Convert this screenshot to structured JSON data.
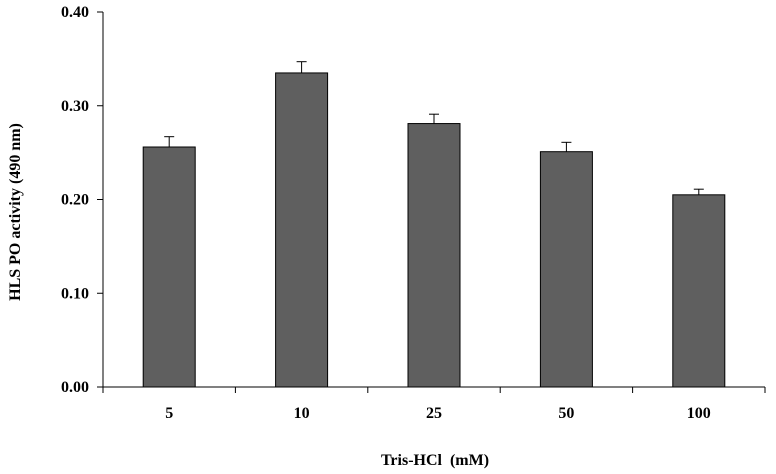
{
  "chart_data": {
    "type": "bar",
    "title": "",
    "xlabel": "Tris-HCl  (mM)",
    "ylabel": "HLS PO activity (490 nm)",
    "categories": [
      "5",
      "10",
      "25",
      "50",
      "100"
    ],
    "values": [
      0.256,
      0.335,
      0.281,
      0.251,
      0.205
    ],
    "errors": [
      0.011,
      0.012,
      0.01,
      0.01,
      0.006
    ],
    "ylim": [
      0,
      0.4
    ],
    "yticks": [
      "0.00",
      "0.10",
      "0.20",
      "0.30",
      "0.40"
    ],
    "grid": false,
    "legend": "none",
    "bar_color": "#5f5f5f"
  }
}
